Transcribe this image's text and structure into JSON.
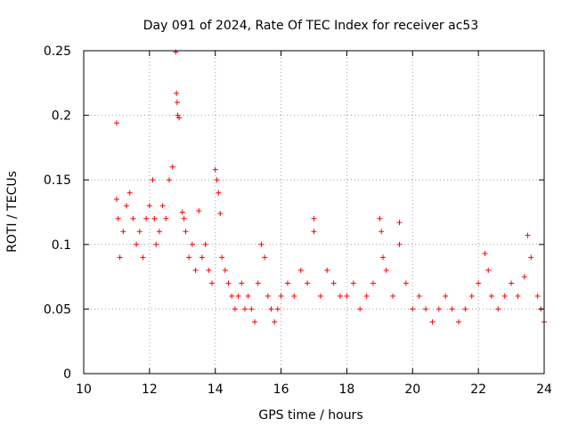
{
  "chart_data": {
    "type": "scatter",
    "title": "Day 091 of 2024, Rate Of TEC Index for receiver ac53",
    "xlabel": "GPS time / hours",
    "ylabel": "ROTI / TECUs",
    "xlim": [
      10,
      24
    ],
    "ylim": [
      0,
      0.25
    ],
    "xticks": [
      10,
      12,
      14,
      16,
      18,
      20,
      22,
      24
    ],
    "yticks": [
      0,
      0.05,
      0.1,
      0.15,
      0.2,
      0.25
    ],
    "xtick_labels": [
      "10",
      "12",
      "14",
      "16",
      "18",
      "20",
      "22",
      "24"
    ],
    "ytick_labels": [
      "0",
      "0.05",
      "0.1",
      "0.15",
      "0.2",
      "0.25"
    ],
    "grid": true,
    "marker": "+",
    "color": "#ff0000",
    "series": [
      {
        "name": "ROTI",
        "x": [
          11.0,
          11.0,
          11.05,
          11.1,
          11.2,
          11.3,
          11.4,
          11.5,
          11.6,
          11.7,
          11.8,
          11.9,
          12.0,
          12.1,
          12.15,
          12.2,
          12.3,
          12.4,
          12.5,
          12.6,
          12.7,
          12.8,
          12.82,
          12.84,
          12.86,
          12.9,
          13.0,
          13.05,
          13.1,
          13.2,
          13.3,
          13.4,
          13.5,
          13.6,
          13.7,
          13.8,
          13.9,
          14.0,
          14.05,
          14.1,
          14.15,
          14.2,
          14.3,
          14.4,
          14.5,
          14.6,
          14.7,
          14.8,
          14.9,
          15.0,
          15.1,
          15.2,
          15.3,
          15.4,
          15.5,
          15.6,
          15.7,
          15.8,
          15.9,
          16.0,
          16.2,
          16.4,
          16.6,
          16.8,
          17.0,
          17.0,
          17.2,
          17.4,
          17.6,
          17.8,
          18.0,
          18.2,
          18.4,
          18.6,
          18.8,
          19.0,
          19.05,
          19.1,
          19.2,
          19.4,
          19.6,
          19.6,
          19.8,
          20.0,
          20.2,
          20.4,
          20.6,
          20.8,
          21.0,
          21.2,
          21.4,
          21.6,
          21.8,
          22.0,
          22.2,
          22.3,
          22.4,
          22.6,
          22.8,
          23.0,
          23.2,
          23.4,
          23.5,
          23.6,
          23.8,
          23.9,
          24.0
        ],
        "y": [
          0.194,
          0.135,
          0.12,
          0.09,
          0.11,
          0.13,
          0.14,
          0.12,
          0.1,
          0.11,
          0.09,
          0.12,
          0.13,
          0.15,
          0.12,
          0.1,
          0.11,
          0.13,
          0.12,
          0.15,
          0.16,
          0.249,
          0.217,
          0.21,
          0.2,
          0.198,
          0.125,
          0.12,
          0.11,
          0.09,
          0.1,
          0.08,
          0.126,
          0.09,
          0.1,
          0.08,
          0.07,
          0.158,
          0.15,
          0.14,
          0.124,
          0.09,
          0.08,
          0.07,
          0.06,
          0.05,
          0.06,
          0.07,
          0.05,
          0.06,
          0.05,
          0.04,
          0.07,
          0.1,
          0.09,
          0.06,
          0.05,
          0.04,
          0.05,
          0.06,
          0.07,
          0.06,
          0.08,
          0.07,
          0.12,
          0.11,
          0.06,
          0.08,
          0.07,
          0.06,
          0.06,
          0.07,
          0.05,
          0.06,
          0.07,
          0.12,
          0.11,
          0.09,
          0.08,
          0.06,
          0.117,
          0.1,
          0.07,
          0.05,
          0.06,
          0.05,
          0.04,
          0.05,
          0.06,
          0.05,
          0.04,
          0.05,
          0.06,
          0.07,
          0.093,
          0.08,
          0.06,
          0.05,
          0.06,
          0.07,
          0.06,
          0.075,
          0.107,
          0.09,
          0.06,
          0.05,
          0.04
        ]
      }
    ]
  }
}
